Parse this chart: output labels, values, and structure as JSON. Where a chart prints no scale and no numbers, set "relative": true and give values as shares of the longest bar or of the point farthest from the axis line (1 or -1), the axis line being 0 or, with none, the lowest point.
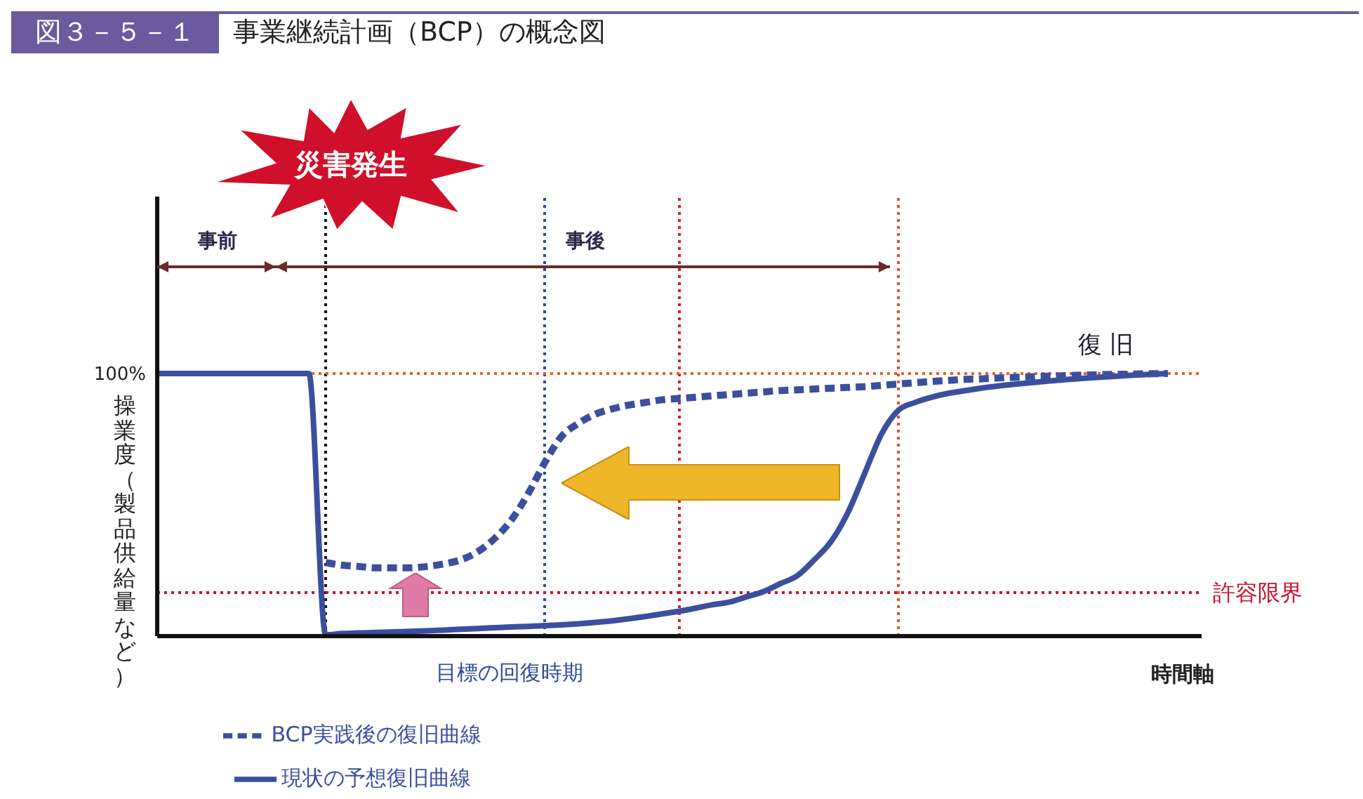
{
  "chart_data": {
    "type": "line",
    "title": "事業継続計画（BCP）の概念図",
    "xlabel": "時間軸",
    "ylabel": "操業度（製品供給量など）",
    "relative": true,
    "legend": "bottom",
    "grid": false,
    "marker": "none",
    "annotations": [
      "図３－５－１",
      "災害発生",
      "事前",
      "事後",
      "復 旧",
      "目標の回復時期"
    ],
    "categories": [
      null,
      null,
      null,
      null,
      null,
      null,
      null,
      null,
      null,
      null,
      null,
      null,
      null,
      null,
      null,
      null,
      null,
      null,
      null,
      null,
      null,
      null,
      null,
      null,
      null,
      null,
      null,
      null,
      null,
      null,
      null,
      null,
      null,
      null,
      null,
      null,
      null,
      null,
      null,
      null,
      null,
      null,
      null,
      null,
      null,
      null,
      null,
      null,
      null,
      null,
      null,
      null,
      null,
      null,
      null,
      null,
      null,
      null,
      null,
      null,
      null,
      null,
      null
    ],
    "series": [
      {
        "name": "現状の予想復旧曲線",
        "color": "#3b4f9e",
        "line_style": "solid",
        "values": [
          1,
          1,
          1,
          1,
          1,
          1,
          1,
          1,
          1,
          1,
          0.005,
          0.01,
          0.012,
          0.014,
          0.016,
          0.018,
          0.02,
          0.023,
          0.026,
          0.029,
          0.032,
          0.035,
          0.037,
          0.04,
          0.043,
          0.047,
          0.052,
          0.058,
          0.066,
          0.075,
          0.085,
          0.095,
          0.107,
          0.12,
          0.13,
          0.15,
          0.17,
          0.2,
          0.23,
          0.29,
          0.36,
          0.47,
          0.62,
          0.77,
          0.86,
          0.89,
          0.91,
          0.925,
          0.935,
          0.945,
          0.953,
          0.96,
          0.966,
          0.972,
          0.977,
          0.982,
          0.986,
          0.99,
          0.994,
          0.997,
          1,
          null,
          null
        ]
      },
      {
        "name": "BCP実践後の復旧曲線",
        "color": "#3b4f9e",
        "line_style": "dashed",
        "values": [
          null,
          null,
          null,
          null,
          null,
          null,
          null,
          null,
          null,
          null,
          0.28,
          0.27,
          0.265,
          0.26,
          0.26,
          0.26,
          0.265,
          0.275,
          0.29,
          0.32,
          0.37,
          0.44,
          0.54,
          0.66,
          0.76,
          0.81,
          0.845,
          0.865,
          0.88,
          0.89,
          0.9,
          0.905,
          0.91,
          0.915,
          0.92,
          0.925,
          0.93,
          0.935,
          0.938,
          0.941,
          0.944,
          0.947,
          0.95,
          0.955,
          0.96,
          0.965,
          0.97,
          0.974,
          0.978,
          0.98,
          0.983,
          0.986,
          0.988,
          0.99,
          0.992,
          0.994,
          0.996,
          0.997,
          0.998,
          0.999,
          1,
          null,
          null
        ]
      }
    ],
    "ref_lines": [
      {
        "axis": "y",
        "value": 1,
        "label": "100%",
        "color": "#e0622e",
        "line_style": "dotted"
      },
      {
        "axis": "y",
        "value": 0.166,
        "label": "許容限界",
        "color": "#c8102e",
        "line_style": "dotted"
      }
    ]
  }
}
